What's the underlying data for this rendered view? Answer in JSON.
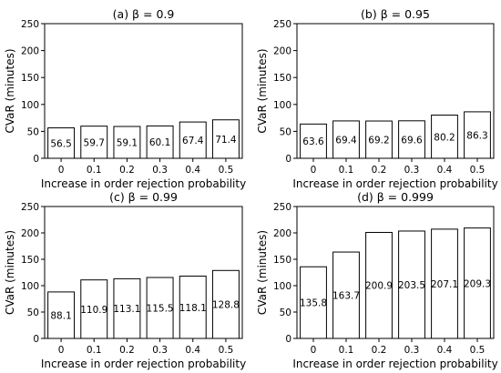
{
  "chart_data": [
    {
      "type": "bar",
      "title": "(a) β = 0.9",
      "xlabel": "Increase in order rejection probability",
      "ylabel": "CVaR (minutes)",
      "categories": [
        "0",
        "0.1",
        "0.2",
        "0.3",
        "0.4",
        "0.5"
      ],
      "values": [
        56.5,
        59.7,
        59.1,
        60.1,
        67.4,
        71.4
      ],
      "value_labels": [
        "56.5",
        "59.7",
        "59.1",
        "60.1",
        "67.4",
        "71.4"
      ],
      "ylim": [
        0,
        250
      ],
      "yticks": [
        0,
        50,
        100,
        150,
        200,
        250
      ],
      "ytick_labels": [
        "0",
        "50",
        "100",
        "150",
        "200",
        "250"
      ],
      "bar_fill": "#ffffff",
      "bar_edge": "#000000"
    },
    {
      "type": "bar",
      "title": "(b) β = 0.95",
      "xlabel": "Increase in order rejection probability",
      "ylabel": "CVaR (minutes)",
      "categories": [
        "0",
        "0.1",
        "0.2",
        "0.3",
        "0.4",
        "0.5"
      ],
      "values": [
        63.6,
        69.4,
        69.2,
        69.6,
        80.2,
        86.3
      ],
      "value_labels": [
        "63.6",
        "69.4",
        "69.2",
        "69.6",
        "80.2",
        "86.3"
      ],
      "ylim": [
        0,
        250
      ],
      "yticks": [
        0,
        50,
        100,
        150,
        200,
        250
      ],
      "ytick_labels": [
        "0",
        "50",
        "100",
        "150",
        "200",
        "250"
      ],
      "bar_fill": "#ffffff",
      "bar_edge": "#000000"
    },
    {
      "type": "bar",
      "title": "(c) β = 0.99",
      "xlabel": "Increase in order rejection probability",
      "ylabel": "CVaR (minutes)",
      "categories": [
        "0",
        "0.1",
        "0.2",
        "0.3",
        "0.4",
        "0.5"
      ],
      "values": [
        88.1,
        110.9,
        113.1,
        115.5,
        118.1,
        128.8
      ],
      "value_labels": [
        "88.1",
        "110.9",
        "113.1",
        "115.5",
        "118.1",
        "128.8"
      ],
      "ylim": [
        0,
        250
      ],
      "yticks": [
        0,
        50,
        100,
        150,
        200,
        250
      ],
      "ytick_labels": [
        "0",
        "50",
        "100",
        "150",
        "200",
        "250"
      ],
      "bar_fill": "#ffffff",
      "bar_edge": "#000000"
    },
    {
      "type": "bar",
      "title": "(d) β = 0.999",
      "xlabel": "Increase in order rejection probability",
      "ylabel": "CVaR (minutes)",
      "categories": [
        "0",
        "0.1",
        "0.2",
        "0.3",
        "0.4",
        "0.5"
      ],
      "values": [
        135.8,
        163.7,
        200.9,
        203.5,
        207.1,
        209.3
      ],
      "value_labels": [
        "135.8",
        "163.7",
        "200.9",
        "203.5",
        "207.1",
        "209.3"
      ],
      "ylim": [
        0,
        250
      ],
      "yticks": [
        0,
        50,
        100,
        150,
        200,
        250
      ],
      "ytick_labels": [
        "0",
        "50",
        "100",
        "150",
        "200",
        "250"
      ],
      "bar_fill": "#ffffff",
      "bar_edge": "#000000"
    }
  ]
}
